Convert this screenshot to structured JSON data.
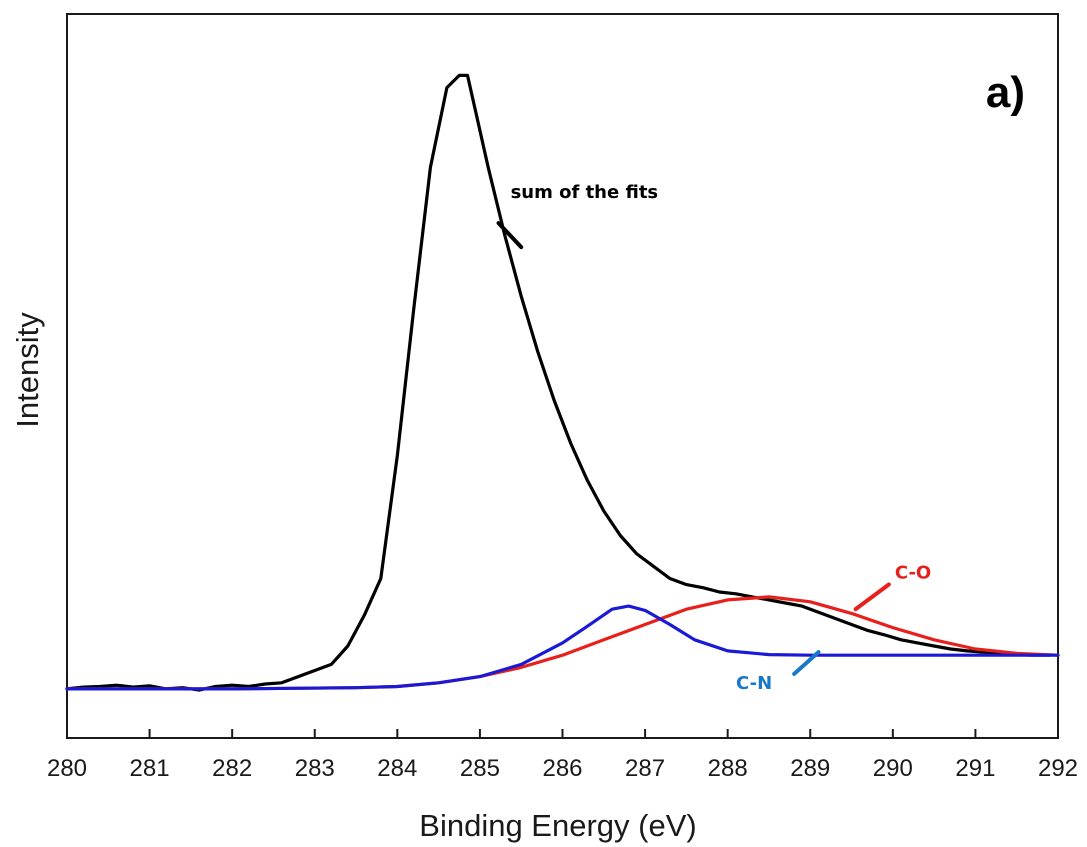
{
  "chart_data": {
    "type": "line",
    "panel_label": "a)",
    "xlabel": "Binding Energy (eV)",
    "ylabel": "Intensity",
    "xlim": [
      280,
      292
    ],
    "ylim": [
      -0.08,
      1.1
    ],
    "x_ticks": [
      "280",
      "281",
      "282",
      "283",
      "284",
      "285",
      "286",
      "287",
      "288",
      "289",
      "290",
      "291",
      "292"
    ],
    "y_ticks_shown": false,
    "grid": false,
    "legend": "none",
    "series": [
      {
        "name": "sum of the fits",
        "color": "#000000",
        "x": [
          280.0,
          280.2,
          280.4,
          280.6,
          280.8,
          281.0,
          281.2,
          281.4,
          281.6,
          281.8,
          282.0,
          282.2,
          282.4,
          282.6,
          282.8,
          283.0,
          283.2,
          283.4,
          283.6,
          283.8,
          284.0,
          284.2,
          284.4,
          284.6,
          284.75,
          284.85,
          284.95,
          285.1,
          285.3,
          285.5,
          285.7,
          285.9,
          286.1,
          286.3,
          286.5,
          286.7,
          286.9,
          287.1,
          287.3,
          287.5,
          287.7,
          287.9,
          288.1,
          288.3,
          288.5,
          288.7,
          288.9,
          289.1,
          289.3,
          289.5,
          289.7,
          289.9,
          290.1,
          290.3,
          290.5,
          290.7,
          290.9,
          291.1,
          291.3,
          291.5,
          291.7,
          291.9
        ],
        "y": [
          0.0,
          0.003,
          0.004,
          0.006,
          0.003,
          0.005,
          0.0,
          0.002,
          -0.002,
          0.004,
          0.006,
          0.004,
          0.008,
          0.01,
          0.02,
          0.03,
          0.04,
          0.07,
          0.12,
          0.18,
          0.38,
          0.62,
          0.85,
          0.98,
          1.0,
          1.0,
          0.94,
          0.85,
          0.74,
          0.64,
          0.55,
          0.47,
          0.4,
          0.34,
          0.29,
          0.25,
          0.22,
          0.2,
          0.18,
          0.17,
          0.165,
          0.158,
          0.155,
          0.15,
          0.145,
          0.14,
          0.135,
          0.125,
          0.115,
          0.105,
          0.095,
          0.088,
          0.08,
          0.075,
          0.07,
          0.065,
          0.062,
          0.06,
          0.058,
          0.056,
          0.055,
          0.055
        ]
      },
      {
        "name": "C-O",
        "color": "#e8201c",
        "x": [
          280.0,
          282.0,
          283.5,
          284.0,
          284.5,
          285.0,
          285.5,
          286.0,
          286.5,
          287.0,
          287.5,
          288.0,
          288.5,
          289.0,
          289.5,
          290.0,
          290.5,
          291.0,
          291.5,
          292.0
        ],
        "y": [
          0.0,
          0.0,
          0.002,
          0.004,
          0.01,
          0.02,
          0.035,
          0.055,
          0.08,
          0.105,
          0.13,
          0.145,
          0.15,
          0.142,
          0.123,
          0.1,
          0.08,
          0.065,
          0.058,
          0.055
        ]
      },
      {
        "name": "C-N",
        "color": "#1a1ad6",
        "x": [
          280.0,
          282.0,
          283.5,
          284.0,
          284.5,
          285.0,
          285.5,
          286.0,
          286.3,
          286.6,
          286.8,
          287.0,
          287.3,
          287.6,
          288.0,
          288.5,
          289.0,
          290.0,
          291.0,
          292.0
        ],
        "y": [
          0.0,
          0.0,
          0.002,
          0.004,
          0.01,
          0.02,
          0.04,
          0.075,
          0.102,
          0.13,
          0.135,
          0.128,
          0.105,
          0.08,
          0.062,
          0.056,
          0.055,
          0.055,
          0.055,
          0.055
        ]
      }
    ],
    "annotations": [
      {
        "text": "sum of the fits",
        "color": "#000000",
        "x": 285.5,
        "y": 0.72,
        "text_x": 286.8,
        "text_y": 0.8
      },
      {
        "text": "C-O",
        "color": "#e8201c",
        "x": 289.55,
        "y": 0.13,
        "text_x": 290.0,
        "text_y": 0.18
      },
      {
        "text": "C-N",
        "color": "#1a78c8",
        "x": 289.1,
        "y": 0.06,
        "text_x": 288.2,
        "text_y": 0.0
      }
    ]
  }
}
